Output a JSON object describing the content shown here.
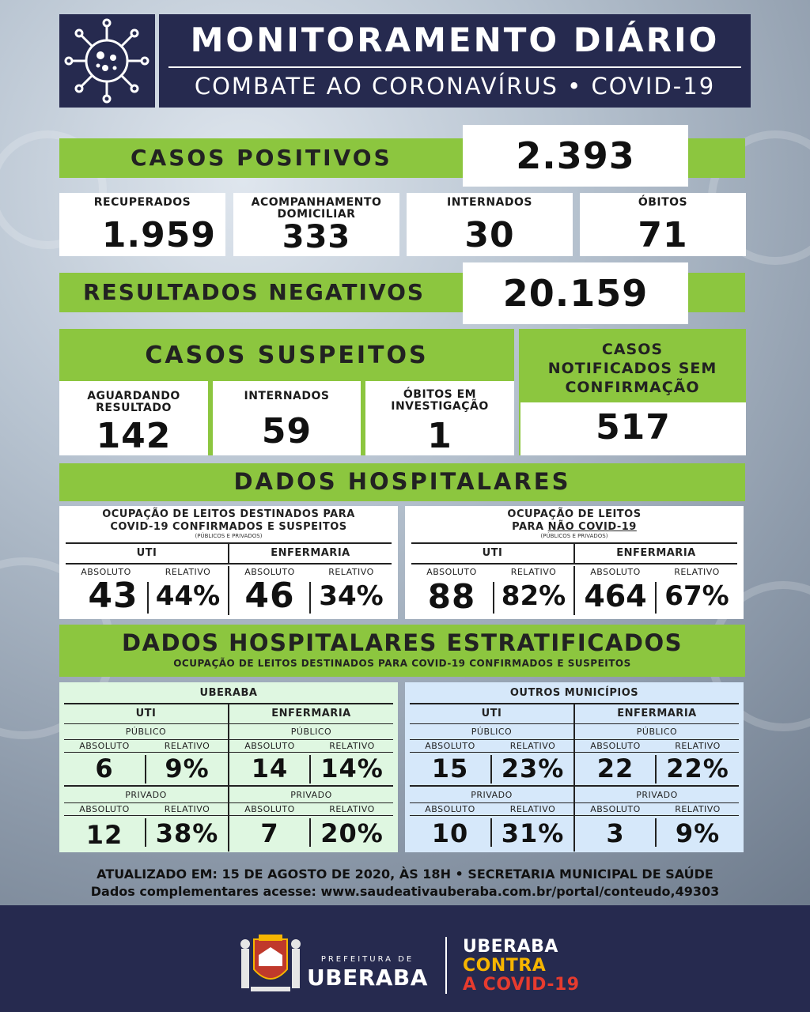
{
  "header": {
    "title": "MONITORAMENTO DIÁRIO",
    "subtitle": "COMBATE AO CORONAVÍRUS • COVID-19",
    "icon": "virus-icon"
  },
  "casos_positivos": {
    "label": "CASOS POSITIVOS",
    "value": "2.393"
  },
  "positivos_detalhe": [
    {
      "label": "RECUPERADOS",
      "value": "1.959"
    },
    {
      "label": "ACOMPANHAMENTO DOMICILIAR",
      "value": "333"
    },
    {
      "label": "INTERNADOS",
      "value": "30"
    },
    {
      "label": "ÓBITOS",
      "value": "71"
    }
  ],
  "resultados_negativos": {
    "label": "RESULTADOS NEGATIVOS",
    "value": "20.159"
  },
  "casos_suspeitos": {
    "label": "CASOS SUSPEITOS",
    "items": [
      {
        "label": "AGUARDANDO RESULTADO",
        "value": "142"
      },
      {
        "label": "INTERNADOS",
        "value": "59"
      },
      {
        "label": "ÓBITOS EM INVESTIGAÇÃO",
        "value": "1"
      }
    ]
  },
  "notificados": {
    "label": "CASOS NOTIFICADOS SEM CONFIRMAÇÃO",
    "value": "517"
  },
  "dados_hospitalares": {
    "title": "DADOS HOSPITALARES",
    "covid": {
      "title_line1": "OCUPAÇÃO DE LEITOS DESTINADOS PARA",
      "title_line2_a": "COVID-19 ",
      "title_line2_b": "CONFIRMADOS E SUSPEITOS",
      "note": "(PÚBLICOS E PRIVADOS)",
      "uti_label": "UTI",
      "enf_label": "ENFERMARIA",
      "abs_label": "ABSOLUTO",
      "rel_label": "RELATIVO",
      "uti_abs": "43",
      "uti_rel": "44%",
      "enf_abs": "46",
      "enf_rel": "34%"
    },
    "nao_covid": {
      "title_line1": "OCUPAÇÃO DE LEITOS",
      "title_line2_a": "PARA ",
      "title_line2_b": "NÃO COVID-19",
      "note": "(PÚBLICOS E PRIVADOS)",
      "uti_label": "UTI",
      "enf_label": "ENFERMARIA",
      "abs_label": "ABSOLUTO",
      "rel_label": "RELATIVO",
      "uti_abs": "88",
      "uti_rel": "82%",
      "enf_abs": "464",
      "enf_rel": "67%"
    }
  },
  "estratificados": {
    "title": "DADOS HOSPITALARES ESTRATIFICADOS",
    "subtitle": "OCUPAÇÃO DE LEITOS DESTINADOS PARA COVID-19 CONFIRMADOS E SUSPEITOS",
    "uti_label": "UTI",
    "enf_label": "ENFERMARIA",
    "publico_label": "PÚBLICO",
    "privado_label": "PRIVADO",
    "abs_label": "ABSOLUTO",
    "rel_label": "RELATIVO",
    "uberaba": {
      "title": "UBERABA",
      "uti_pub_abs": "6",
      "uti_pub_rel": "9%",
      "enf_pub_abs": "14",
      "enf_pub_rel": "14%",
      "uti_priv_abs": "12",
      "uti_priv_rel": "38%",
      "enf_priv_abs": "7",
      "enf_priv_rel": "20%"
    },
    "outros": {
      "title": "OUTROS MUNICÍPIOS",
      "uti_pub_abs": "15",
      "uti_pub_rel": "23%",
      "enf_pub_abs": "22",
      "enf_pub_rel": "22%",
      "uti_priv_abs": "10",
      "uti_priv_rel": "31%",
      "enf_priv_abs": "3",
      "enf_priv_rel": "9%"
    }
  },
  "rodape": {
    "atualizado": "ATUALIZADO EM: 15 DE AGOSTO DE 2020, ÀS 18H • SECRETARIA MUNICIPAL DE SAÚDE",
    "link": "Dados complementares acesse: www.saudeativauberaba.com.br/portal/conteudo,49303"
  },
  "footer": {
    "prefeitura_small": "PREFEITURA DE",
    "prefeitura_big": "UBERABA",
    "campanha_1": "UBERABA",
    "campanha_2": "CONTRA",
    "campanha_3": "A COVID-19",
    "color_navy": "#262a4f",
    "color_yellow": "#f6b500",
    "color_red": "#e63b2e",
    "crest_icon": "city-crest-icon"
  }
}
